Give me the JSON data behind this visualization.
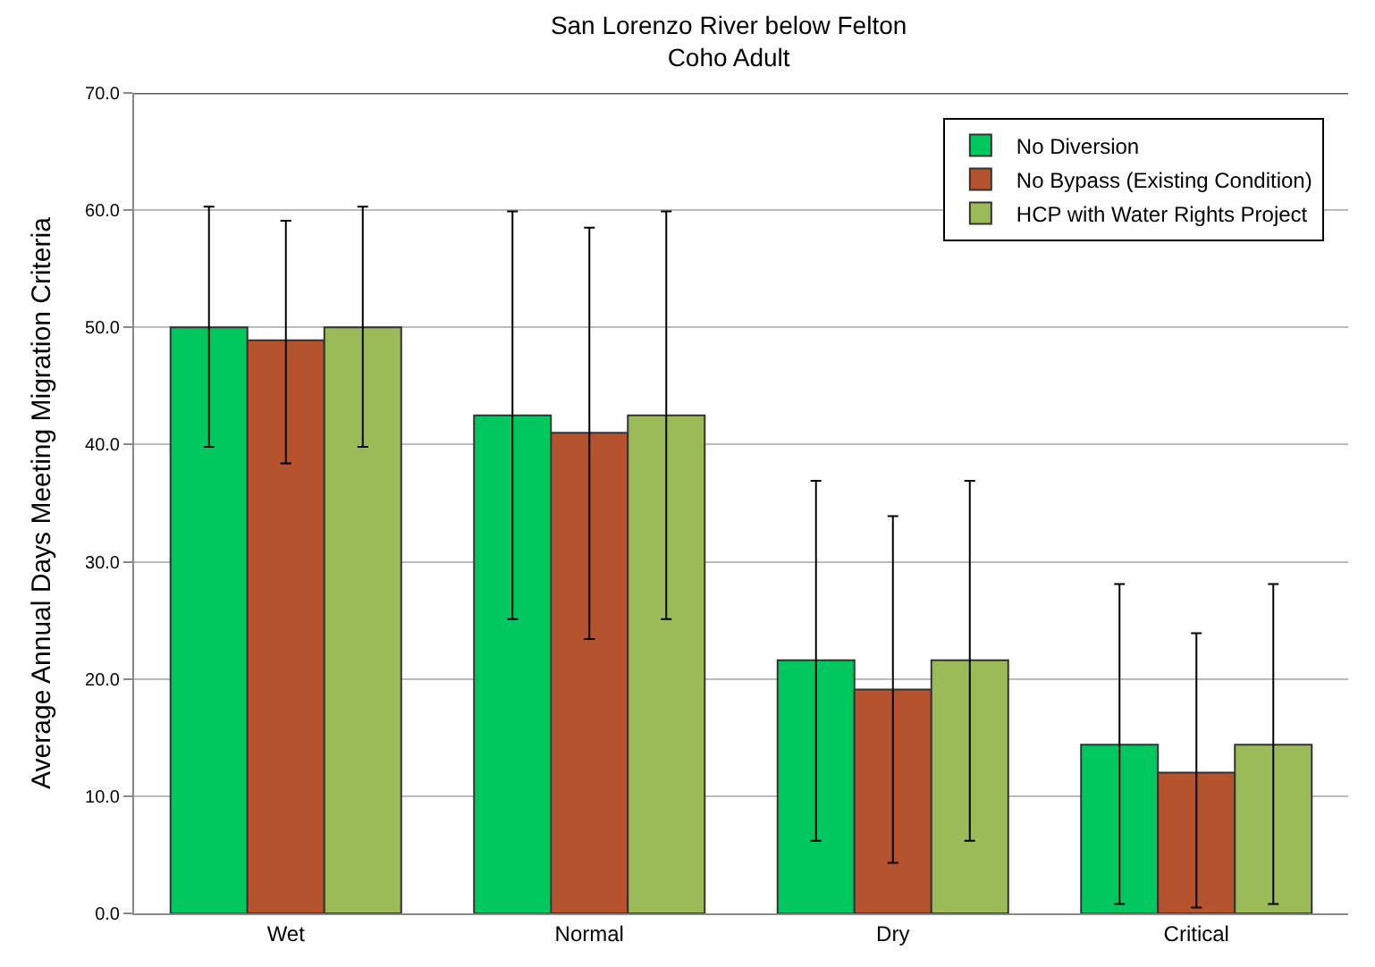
{
  "chart_data": {
    "type": "bar",
    "title": "San Lorenzo River below Felton",
    "subtitle": "Coho Adult",
    "ylabel": "Average Annual Days Meeting Migration Criteria",
    "categories": [
      "Wet",
      "Normal",
      "Dry",
      "Critical"
    ],
    "series": [
      {
        "name": "No Diversion",
        "color": "#00c85f",
        "values": [
          50.0,
          42.5,
          21.6,
          14.4
        ],
        "errors": [
          [
            39.8,
            60.3
          ],
          [
            25.1,
            59.9
          ],
          [
            6.2,
            36.9
          ],
          [
            0.8,
            28.1
          ]
        ]
      },
      {
        "name": "No Bypass (Existing Condition)",
        "color": "#b5532e",
        "values": [
          48.9,
          41.0,
          19.1,
          12.0
        ],
        "errors": [
          [
            38.4,
            59.1
          ],
          [
            23.4,
            58.5
          ],
          [
            4.3,
            33.9
          ],
          [
            0.5,
            23.9
          ]
        ]
      },
      {
        "name": "HCP with Water Rights Project",
        "color": "#9bbb59",
        "values": [
          50.0,
          42.5,
          21.6,
          14.4
        ],
        "errors": [
          [
            39.8,
            60.3
          ],
          [
            25.1,
            59.9
          ],
          [
            6.2,
            36.9
          ],
          [
            0.8,
            28.1
          ]
        ]
      }
    ],
    "ylim": [
      0,
      70
    ],
    "yticks": [
      {
        "value": 0,
        "label": "0.0"
      },
      {
        "value": 10,
        "label": "10.0"
      },
      {
        "value": 20,
        "label": "20.0"
      },
      {
        "value": 30,
        "label": "30.0"
      },
      {
        "value": 40,
        "label": "40.0"
      },
      {
        "value": 50,
        "label": "50.0"
      },
      {
        "value": 60,
        "label": "60.0"
      },
      {
        "value": 70,
        "label": "70.0"
      }
    ],
    "grid": "y",
    "legend": "top right"
  }
}
